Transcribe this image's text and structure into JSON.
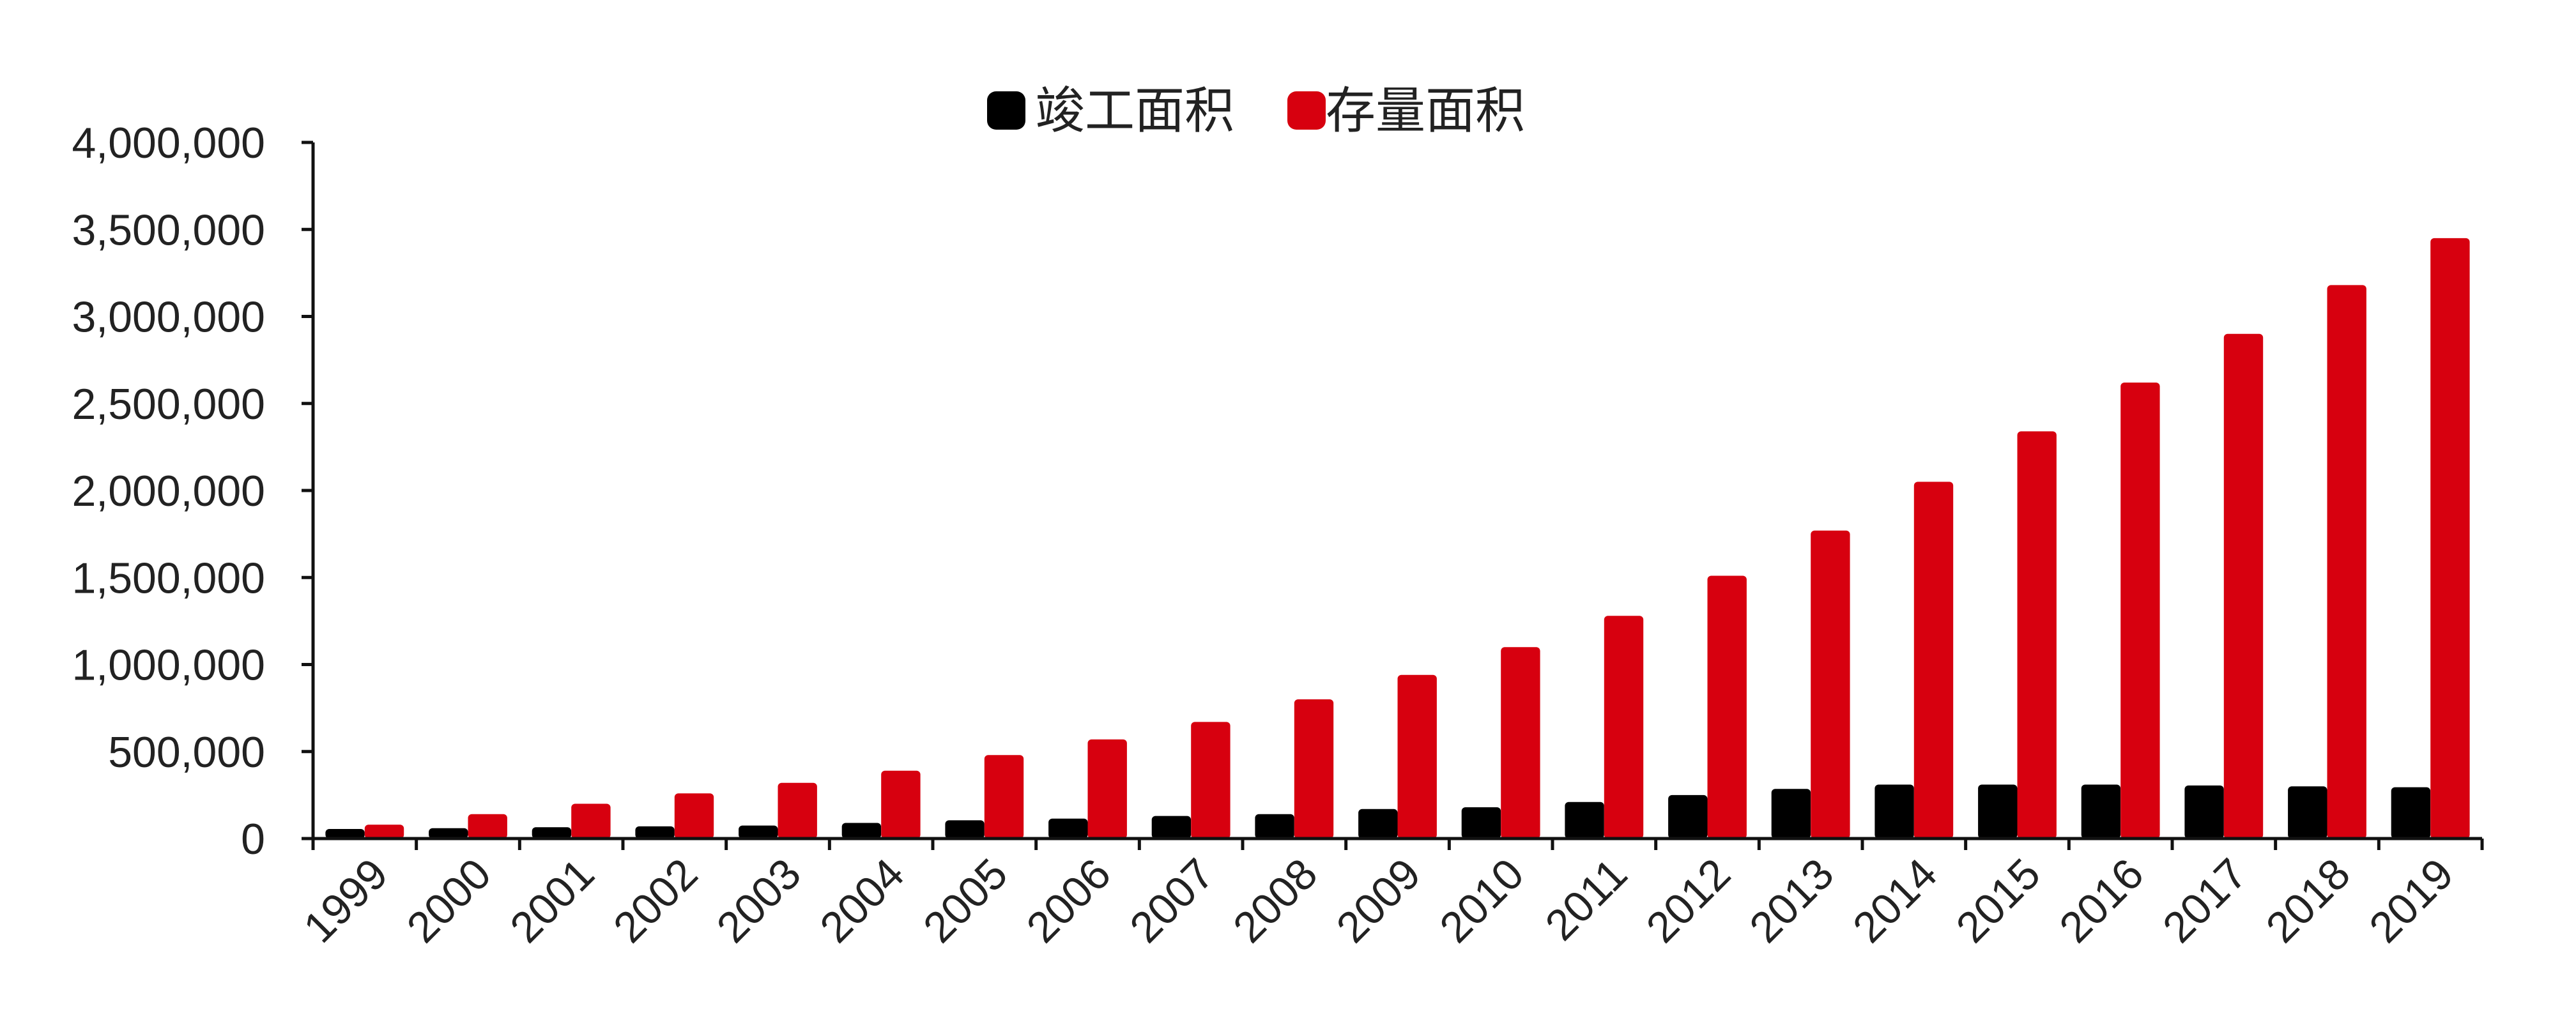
{
  "chart_data": {
    "type": "bar",
    "title": "",
    "xlabel": "",
    "ylabel": "",
    "ylim": [
      0,
      4000000
    ],
    "grid": false,
    "legend_position": "top-center",
    "y_ticks": [
      0,
      500000,
      1000000,
      1500000,
      2000000,
      2500000,
      3000000,
      3500000,
      4000000
    ],
    "y_tick_labels": [
      "0",
      "500,000",
      "1,000,000",
      "1,500,000",
      "2,000,000",
      "2,500,000",
      "3,000,000",
      "3,500,000",
      "4,000,000"
    ],
    "categories": [
      "1999",
      "2000",
      "2001",
      "2002",
      "2003",
      "2004",
      "2005",
      "2006",
      "2007",
      "2008",
      "2009",
      "2010",
      "2011",
      "2012",
      "2013",
      "2014",
      "2015",
      "2016",
      "2017",
      "2018",
      "2019"
    ],
    "series": [
      {
        "name": "竣工面积",
        "color": "#000000",
        "values": [
          55000,
          60000,
          65000,
          70000,
          75000,
          90000,
          105000,
          115000,
          130000,
          140000,
          170000,
          180000,
          210000,
          250000,
          285000,
          310000,
          310000,
          310000,
          305000,
          300000,
          295000
        ]
      },
      {
        "name": "存量面积",
        "color": "#d7000f",
        "values": [
          80000,
          140000,
          200000,
          260000,
          320000,
          390000,
          480000,
          570000,
          670000,
          800000,
          940000,
          1100000,
          1280000,
          1510000,
          1770000,
          2050000,
          2340000,
          2620000,
          2900000,
          3180000,
          3450000
        ]
      }
    ]
  }
}
